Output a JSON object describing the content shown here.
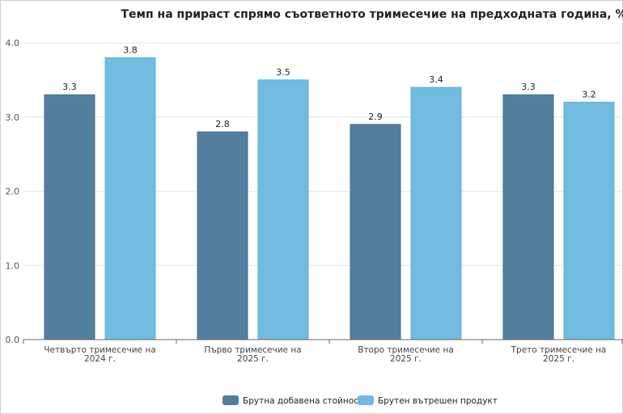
{
  "chart_data": {
    "type": "bar",
    "title": "Темп на прираст спрямо съответното тримесечие на предходната година, %",
    "categories": [
      [
        "Четвърто тримесечие на",
        "2024 г."
      ],
      [
        "Първо тримесечие на",
        "2025 г."
      ],
      [
        "Второ тримесечие на",
        "2025 г."
      ],
      [
        "Трето тримесечие на",
        "2025 г."
      ]
    ],
    "series": [
      {
        "name": "Брутна добавена стойност",
        "color": "#537f9f",
        "values": [
          3.3,
          2.8,
          2.9,
          3.3
        ]
      },
      {
        "name": "Брутен вътрешен продукт",
        "color": "#70bbdf",
        "values": [
          3.8,
          3.5,
          3.4,
          3.2
        ]
      }
    ],
    "yticks": [
      "0.0",
      "1.0",
      "2.0",
      "3.0",
      "4.0"
    ],
    "ylim": [
      0,
      4
    ],
    "xlabel": "",
    "ylabel": "",
    "grid": true,
    "legend": "bottom-center"
  }
}
